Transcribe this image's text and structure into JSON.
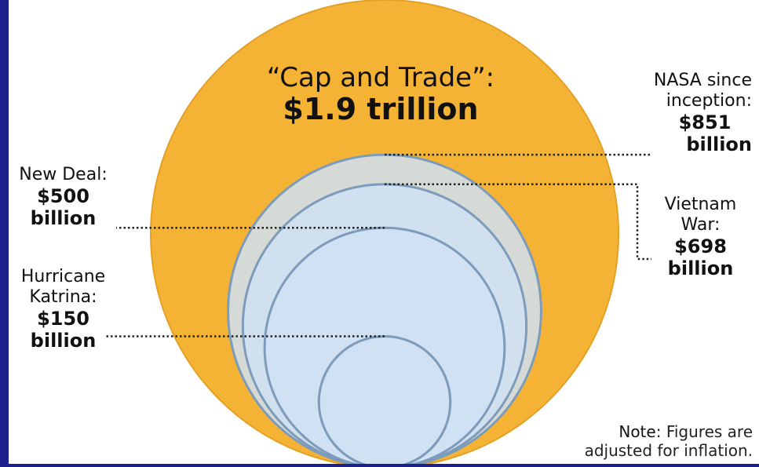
{
  "chart_data": {
    "type": "bubble",
    "title": "",
    "unit": "billion USD (inflation-adjusted)",
    "items": [
      {
        "name": "“Cap and Trade”:",
        "value_label": "$1.9 trillion",
        "value": 1900
      },
      {
        "name": "NASA since inception:",
        "value_label": "$851 billion",
        "value": 851
      },
      {
        "name": "Vietnam War:",
        "value_label": "$698 billion",
        "value": 698
      },
      {
        "name": "New Deal:",
        "value_label": "$500 billion",
        "value": 500
      },
      {
        "name": "Hurricane Katrina:",
        "value_label": "$150 billion",
        "value": 150
      }
    ],
    "colors": {
      "largest_fill": "#f5b335",
      "largest_stroke": "#e3a026",
      "small_fill": "#cfe0f2",
      "small_stroke": "#7d9bbb"
    }
  },
  "labels": {
    "cap_name": "“Cap and Trade”:",
    "cap_value": "$1.9 trillion",
    "nasa_name_1": "NASA since",
    "nasa_name_2": "inception:",
    "nasa_value_1": "$851",
    "nasa_value_2": "billion",
    "vietnam_name_1": "Vietnam",
    "vietnam_name_2": "War:",
    "vietnam_value_1": "$698",
    "vietnam_value_2": "billion",
    "newdeal_name": "New Deal:",
    "newdeal_value_1": "$500",
    "newdeal_value_2": "billion",
    "katrina_name_1": "Hurricane",
    "katrina_name_2": "Katrina:",
    "katrina_value_1": "$150",
    "katrina_value_2": "billion"
  },
  "note": {
    "label": "Note:",
    "text_1": "Figures are",
    "text_2": "adjusted for inflation."
  },
  "frame_color": "#1b1f8e"
}
